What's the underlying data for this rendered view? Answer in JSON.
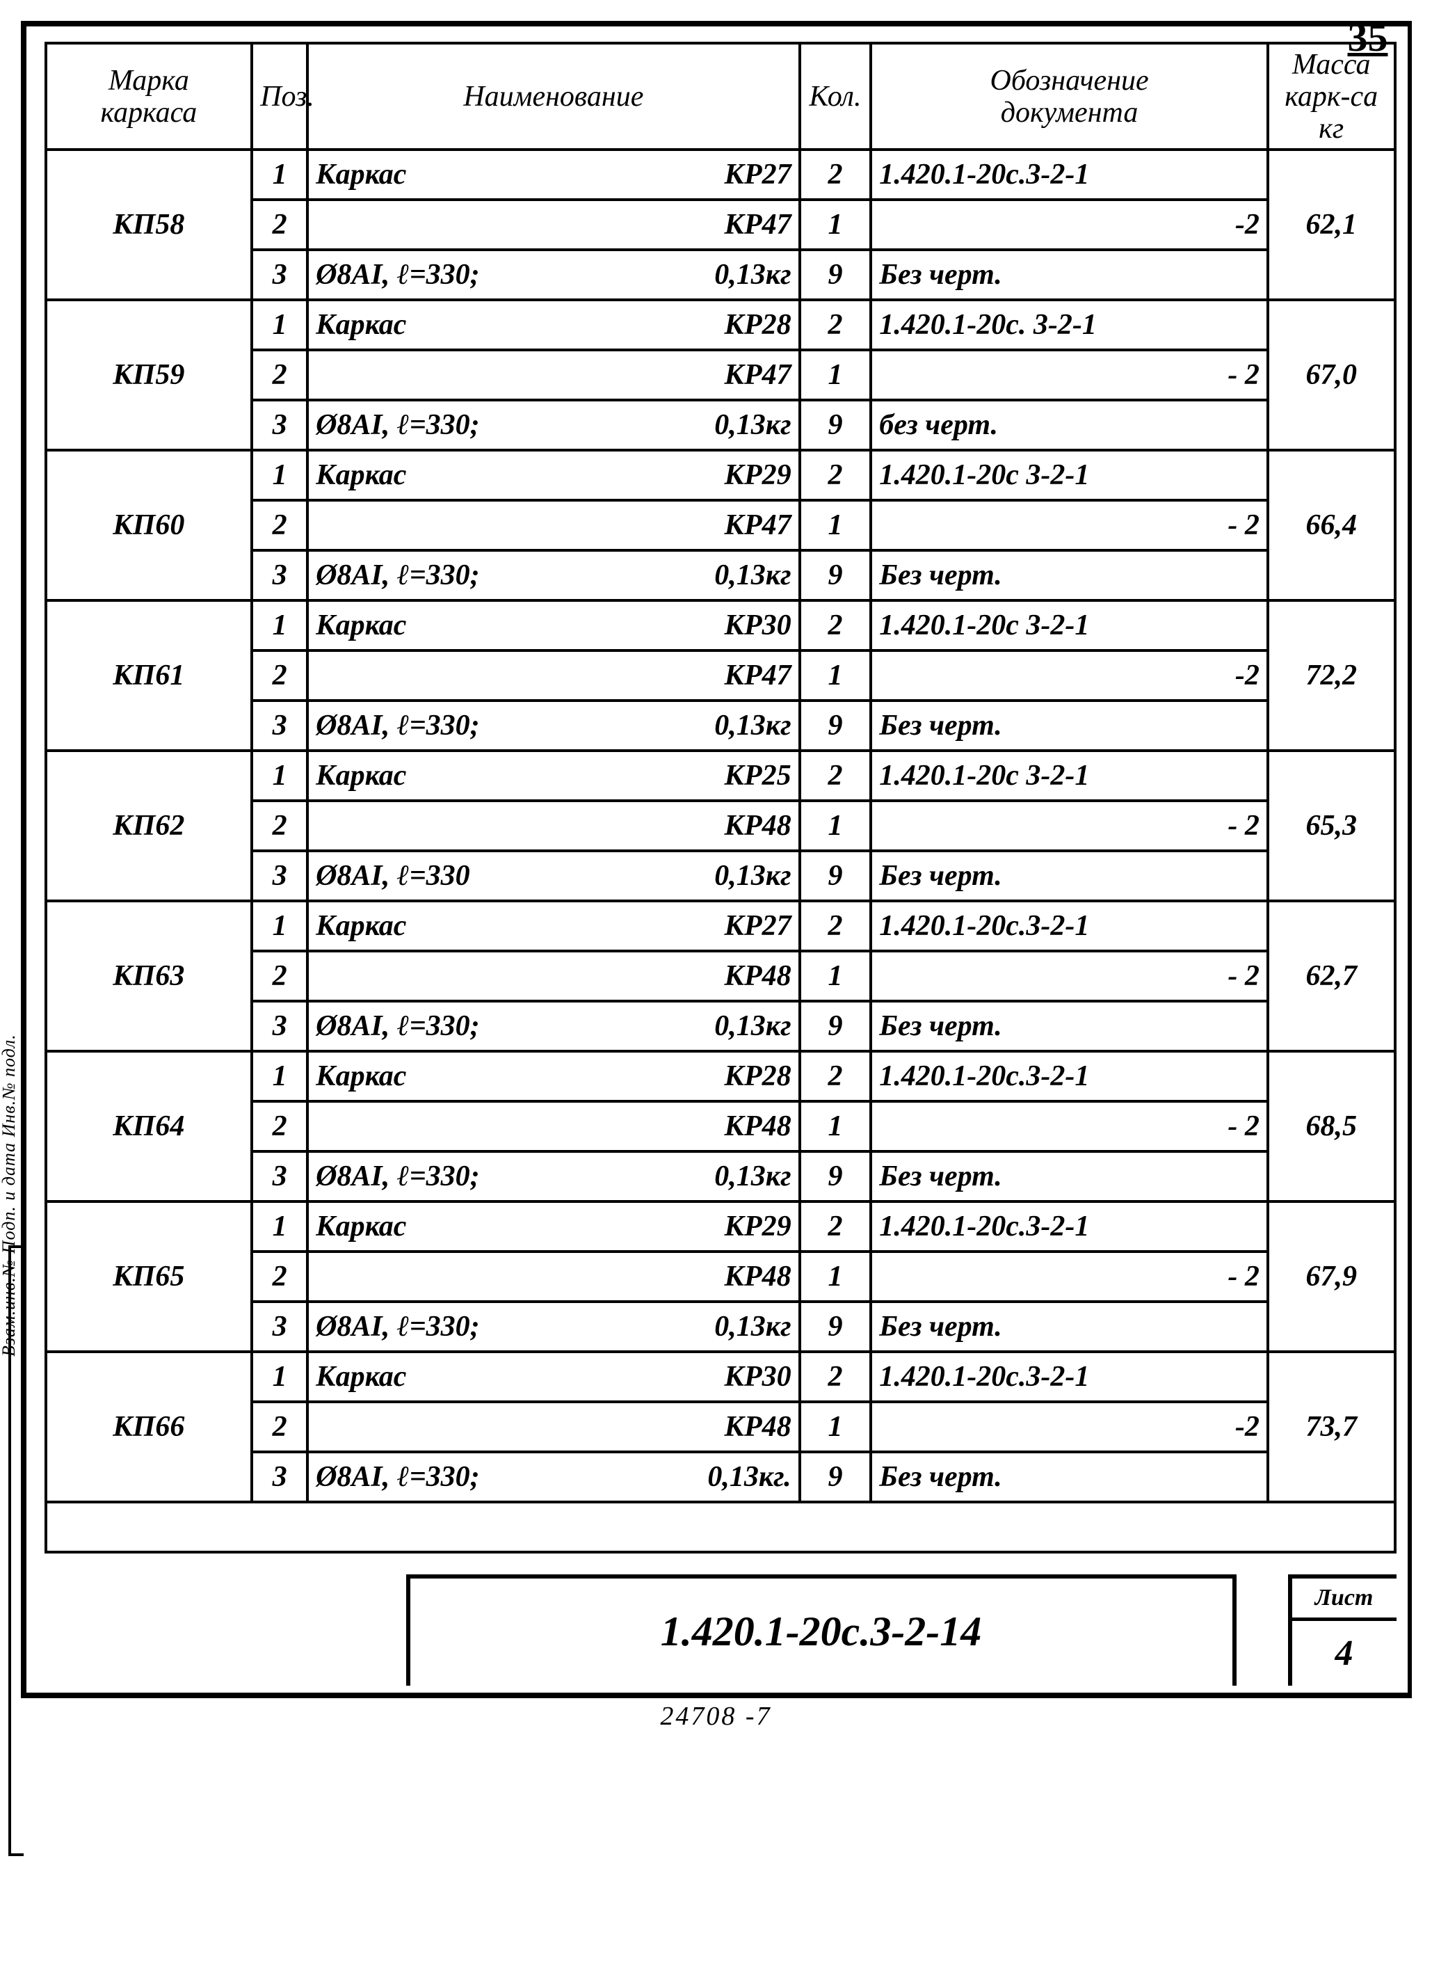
{
  "page_number_top": "35",
  "headers": {
    "marka": "Марка\nкаркаса",
    "poz": "Поз.",
    "name": "Наименование",
    "kol": "Кол.",
    "doc": "Обозначение\nдокумента",
    "mass": "Масса\nкарк-cа\nкг"
  },
  "groups": [
    {
      "marka": "КП58",
      "mass": "62,1",
      "rows": [
        {
          "poz": "1",
          "name_l": "Каркас",
          "name_r": "КР27",
          "kol": "2",
          "doc": "1.420.1-20с.3-2-1",
          "doc_align": "left"
        },
        {
          "poz": "2",
          "name_l": "",
          "name_r": "КР47",
          "kol": "1",
          "doc": "-2",
          "doc_align": "right"
        },
        {
          "poz": "3",
          "name_l": "Ø8АI,  ℓ=330;",
          "name_r": "0,13кг",
          "kol": "9",
          "doc": "Без черт.",
          "doc_align": "left"
        }
      ]
    },
    {
      "marka": "КП59",
      "mass": "67,0",
      "rows": [
        {
          "poz": "1",
          "name_l": "Каркас",
          "name_r": "КР28",
          "kol": "2",
          "doc": "1.420.1-20с. 3-2-1",
          "doc_align": "left"
        },
        {
          "poz": "2",
          "name_l": "",
          "name_r": "КР47",
          "kol": "1",
          "doc": "- 2",
          "doc_align": "right"
        },
        {
          "poz": "3",
          "name_l": "Ø8АI,  ℓ=330;",
          "name_r": "0,13кг",
          "kol": "9",
          "doc": "без черт.",
          "doc_align": "left"
        }
      ]
    },
    {
      "marka": "КП60",
      "mass": "66,4",
      "rows": [
        {
          "poz": "1",
          "name_l": "Каркас",
          "name_r": "КР29",
          "kol": "2",
          "doc": "1.420.1-20с 3-2-1",
          "doc_align": "left"
        },
        {
          "poz": "2",
          "name_l": "",
          "name_r": "КР47",
          "kol": "1",
          "doc": "- 2",
          "doc_align": "right"
        },
        {
          "poz": "3",
          "name_l": "Ø8АI,  ℓ=330;",
          "name_r": "0,13кг",
          "kol": "9",
          "doc": "Без черт.",
          "doc_align": "left"
        }
      ]
    },
    {
      "marka": "КП61",
      "mass": "72,2",
      "rows": [
        {
          "poz": "1",
          "name_l": "Каркас",
          "name_r": "КР30",
          "kol": "2",
          "doc": "1.420.1-20с 3-2-1",
          "doc_align": "left"
        },
        {
          "poz": "2",
          "name_l": "",
          "name_r": "КР47",
          "kol": "1",
          "doc": "-2",
          "doc_align": "right"
        },
        {
          "poz": "3",
          "name_l": "Ø8АI, ℓ=330;",
          "name_r": "0,13кг",
          "kol": "9",
          "doc": "Без черт.",
          "doc_align": "left"
        }
      ]
    },
    {
      "marka": "КП62",
      "mass": "65,3",
      "rows": [
        {
          "poz": "1",
          "name_l": "Каркас",
          "name_r": "КР25",
          "kol": "2",
          "doc": "1.420.1-20с 3-2-1",
          "doc_align": "left"
        },
        {
          "poz": "2",
          "name_l": "",
          "name_r": "КР48",
          "kol": "1",
          "doc": "- 2",
          "doc_align": "right"
        },
        {
          "poz": "3",
          "name_l": "Ø8АI,  ℓ=330",
          "name_r": "0,13кг",
          "kol": "9",
          "doc": "Без черт.",
          "doc_align": "left"
        }
      ]
    },
    {
      "marka": "КП63",
      "mass": "62,7",
      "rows": [
        {
          "poz": "1",
          "name_l": "Каркас",
          "name_r": "КР27",
          "kol": "2",
          "doc": "1.420.1-20с.3-2-1",
          "doc_align": "left"
        },
        {
          "poz": "2",
          "name_l": "",
          "name_r": "КР48",
          "kol": "1",
          "doc": "- 2",
          "doc_align": "right"
        },
        {
          "poz": "3",
          "name_l": "Ø8АI, ℓ=330;",
          "name_r": "0,13кг",
          "kol": "9",
          "doc": "Без черт.",
          "doc_align": "left"
        }
      ]
    },
    {
      "marka": "КП64",
      "mass": "68,5",
      "rows": [
        {
          "poz": "1",
          "name_l": "Каркас",
          "name_r": "КР28",
          "kol": "2",
          "doc": "1.420.1-20с.3-2-1",
          "doc_align": "left"
        },
        {
          "poz": "2",
          "name_l": "",
          "name_r": "КР48",
          "kol": "1",
          "doc": "- 2",
          "doc_align": "right"
        },
        {
          "poz": "3",
          "name_l": "Ø8АI,   ℓ=330;",
          "name_r": "0,13кг",
          "kol": "9",
          "doc": "Без черт.",
          "doc_align": "left"
        }
      ]
    },
    {
      "marka": "КП65",
      "mass": "67,9",
      "rows": [
        {
          "poz": "1",
          "name_l": "Каркас",
          "name_r": "КР29",
          "kol": "2",
          "doc": "1.420.1-20с.3-2-1",
          "doc_align": "left"
        },
        {
          "poz": "2",
          "name_l": "",
          "name_r": "КР48",
          "kol": "1",
          "doc": "- 2",
          "doc_align": "right"
        },
        {
          "poz": "3",
          "name_l": "Ø8АI,  ℓ=330;",
          "name_r": "0,13кг",
          "kol": "9",
          "doc": "Без черт.",
          "doc_align": "left"
        }
      ]
    },
    {
      "marka": "КП66",
      "mass": "73,7",
      "rows": [
        {
          "poz": "1",
          "name_l": "Каркас",
          "name_r": "КР30",
          "kol": "2",
          "doc": "1.420.1-20с.3-2-1",
          "doc_align": "left"
        },
        {
          "poz": "2",
          "name_l": "",
          "name_r": "КР48",
          "kol": "1",
          "doc": "-2",
          "doc_align": "right"
        },
        {
          "poz": "3",
          "name_l": "Ø8АI,  ℓ=330;",
          "name_r": "0,13кг.",
          "kol": "9",
          "doc": "Без черт.",
          "doc_align": "left"
        }
      ]
    }
  ],
  "footer": {
    "doc_code": "1.420.1-20с.3-2-14",
    "sheet_label": "Лист",
    "sheet_number": "4",
    "bottom_code": "24708    -7"
  },
  "side_text": "Взам.инв.№  Подп. и дата  Инв.№ подл."
}
